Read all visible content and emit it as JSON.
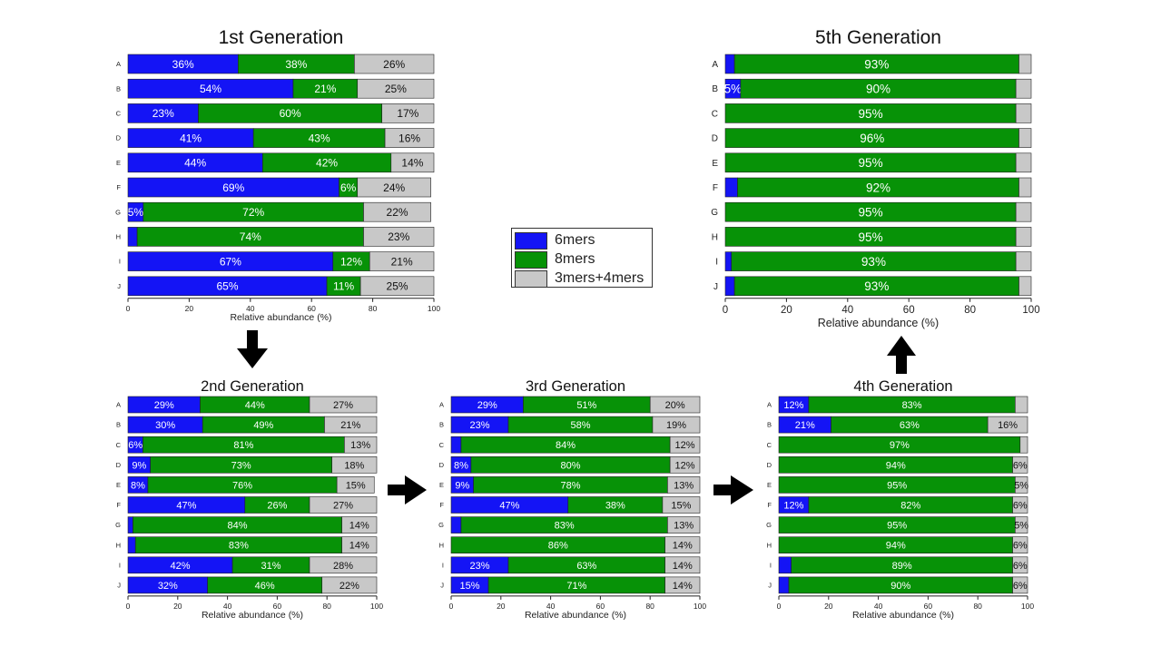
{
  "colors": {
    "blue": "#1414f5",
    "green": "#079207",
    "gray": "#c8c8c8",
    "arrow": "#000000"
  },
  "legend": {
    "items": [
      "6mers",
      "8mers",
      "3mers+4mers"
    ]
  },
  "chart_data": [
    {
      "type": "bar",
      "stacked": true,
      "orientation": "horizontal",
      "title": "1st Generation",
      "xlabel": "Relative abundance (%)",
      "xlim": [
        0,
        100
      ],
      "xticks": [
        0,
        20,
        40,
        60,
        80,
        100
      ],
      "categories": [
        "A",
        "B",
        "C",
        "D",
        "E",
        "F",
        "G",
        "H",
        "I",
        "J"
      ],
      "series": [
        {
          "name": "6mers",
          "values": [
            36,
            54,
            23,
            41,
            44,
            69,
            5,
            3,
            67,
            65
          ]
        },
        {
          "name": "8mers",
          "values": [
            38,
            21,
            60,
            43,
            42,
            6,
            72,
            74,
            12,
            11
          ]
        },
        {
          "name": "3mers+4mers",
          "values": [
            26,
            25,
            17,
            16,
            14,
            24,
            22,
            23,
            21,
            25
          ]
        }
      ],
      "labels": [
        [
          "36%",
          "38%",
          "26%"
        ],
        [
          "54%",
          "21%",
          "25%"
        ],
        [
          "23%",
          "60%",
          "17%"
        ],
        [
          "41%",
          "43%",
          "16%"
        ],
        [
          "44%",
          "42%",
          "14%"
        ],
        [
          "69%",
          "6%",
          "24%"
        ],
        [
          "5%",
          "72%",
          "22%"
        ],
        [
          "",
          "74%",
          "23%"
        ],
        [
          "67%",
          "12%",
          "21%"
        ],
        [
          "65%",
          "11%",
          "25%"
        ]
      ]
    },
    {
      "type": "bar",
      "stacked": true,
      "orientation": "horizontal",
      "title": "5th Generation",
      "xlabel": "Relative abundance (%)",
      "xlim": [
        0,
        100
      ],
      "xticks": [
        0,
        20,
        40,
        60,
        80,
        100
      ],
      "categories": [
        "A",
        "B",
        "C",
        "D",
        "E",
        "F",
        "G",
        "H",
        "I",
        "J"
      ],
      "series": [
        {
          "name": "6mers",
          "values": [
            3,
            5,
            0,
            0,
            0,
            4,
            0,
            0,
            2,
            3
          ]
        },
        {
          "name": "8mers",
          "values": [
            93,
            90,
            95,
            96,
            95,
            92,
            95,
            95,
            93,
            93
          ]
        },
        {
          "name": "3mers+4mers",
          "values": [
            4,
            5,
            5,
            4,
            5,
            4,
            5,
            5,
            5,
            4
          ]
        }
      ],
      "labels": [
        [
          "",
          "93%",
          ""
        ],
        [
          "5%",
          "90%",
          ""
        ],
        [
          "",
          "95%",
          ""
        ],
        [
          "",
          "96%",
          ""
        ],
        [
          "",
          "95%",
          ""
        ],
        [
          "",
          "92%",
          ""
        ],
        [
          "",
          "95%",
          ""
        ],
        [
          "",
          "95%",
          ""
        ],
        [
          "",
          "93%",
          ""
        ],
        [
          "",
          "93%",
          ""
        ]
      ]
    },
    {
      "type": "bar",
      "stacked": true,
      "orientation": "horizontal",
      "title": "2nd Generation",
      "xlabel": "Relative abundance (%)",
      "xlim": [
        0,
        100
      ],
      "xticks": [
        0,
        20,
        40,
        60,
        80,
        100
      ],
      "categories": [
        "A",
        "B",
        "C",
        "D",
        "E",
        "F",
        "G",
        "H",
        "I",
        "J"
      ],
      "series": [
        {
          "name": "6mers",
          "values": [
            29,
            30,
            6,
            9,
            8,
            47,
            2,
            3,
            42,
            32
          ]
        },
        {
          "name": "8mers",
          "values": [
            44,
            49,
            81,
            73,
            76,
            26,
            84,
            83,
            31,
            46
          ]
        },
        {
          "name": "3mers+4mers",
          "values": [
            27,
            21,
            13,
            18,
            15,
            27,
            14,
            14,
            28,
            22
          ]
        }
      ],
      "labels": [
        [
          "29%",
          "44%",
          "27%"
        ],
        [
          "30%",
          "49%",
          "21%"
        ],
        [
          "6%",
          "81%",
          "13%"
        ],
        [
          "9%",
          "73%",
          "18%"
        ],
        [
          "8%",
          "76%",
          "15%"
        ],
        [
          "47%",
          "26%",
          "27%"
        ],
        [
          "",
          "84%",
          "14%"
        ],
        [
          "",
          "83%",
          "14%"
        ],
        [
          "42%",
          "31%",
          "28%"
        ],
        [
          "32%",
          "46%",
          "22%"
        ]
      ]
    },
    {
      "type": "bar",
      "stacked": true,
      "orientation": "horizontal",
      "title": "3rd Generation",
      "xlabel": "Relative abundance (%)",
      "xlim": [
        0,
        100
      ],
      "xticks": [
        0,
        20,
        40,
        60,
        80,
        100
      ],
      "categories": [
        "A",
        "B",
        "C",
        "D",
        "E",
        "F",
        "G",
        "H",
        "I",
        "J"
      ],
      "series": [
        {
          "name": "6mers",
          "values": [
            29,
            23,
            4,
            8,
            9,
            47,
            4,
            0,
            23,
            15
          ]
        },
        {
          "name": "8mers",
          "values": [
            51,
            58,
            84,
            80,
            78,
            38,
            83,
            86,
            63,
            71
          ]
        },
        {
          "name": "3mers+4mers",
          "values": [
            20,
            19,
            12,
            12,
            13,
            15,
            13,
            14,
            14,
            14
          ]
        }
      ],
      "labels": [
        [
          "29%",
          "51%",
          "20%"
        ],
        [
          "23%",
          "58%",
          "19%"
        ],
        [
          "",
          "84%",
          "12%"
        ],
        [
          "8%",
          "80%",
          "12%"
        ],
        [
          "9%",
          "78%",
          "13%"
        ],
        [
          "47%",
          "38%",
          "15%"
        ],
        [
          "",
          "83%",
          "13%"
        ],
        [
          "",
          "86%",
          "14%"
        ],
        [
          "23%",
          "63%",
          "14%"
        ],
        [
          "15%",
          "71%",
          "14%"
        ]
      ]
    },
    {
      "type": "bar",
      "stacked": true,
      "orientation": "horizontal",
      "title": "4th Generation",
      "xlabel": "Relative abundance (%)",
      "xlim": [
        0,
        100
      ],
      "xticks": [
        0,
        20,
        40,
        60,
        80,
        100
      ],
      "categories": [
        "A",
        "B",
        "C",
        "D",
        "E",
        "F",
        "G",
        "H",
        "I",
        "J"
      ],
      "series": [
        {
          "name": "6mers",
          "values": [
            12,
            21,
            0,
            0,
            0,
            12,
            0,
            0,
            5,
            4
          ]
        },
        {
          "name": "8mers",
          "values": [
            83,
            63,
            97,
            94,
            95,
            82,
            95,
            94,
            89,
            90
          ]
        },
        {
          "name": "3mers+4mers",
          "values": [
            5,
            16,
            3,
            6,
            5,
            6,
            5,
            6,
            6,
            6
          ]
        }
      ],
      "labels": [
        [
          "12%",
          "83%",
          ""
        ],
        [
          "21%",
          "63%",
          "16%"
        ],
        [
          "",
          "97%",
          ""
        ],
        [
          "",
          "94%",
          "6%"
        ],
        [
          "",
          "95%",
          "5%"
        ],
        [
          "12%",
          "82%",
          "6%"
        ],
        [
          "",
          "95%",
          "5%"
        ],
        [
          "",
          "94%",
          "6%"
        ],
        [
          "",
          "89%",
          "6%"
        ],
        [
          "",
          "90%",
          "6%"
        ]
      ]
    }
  ]
}
